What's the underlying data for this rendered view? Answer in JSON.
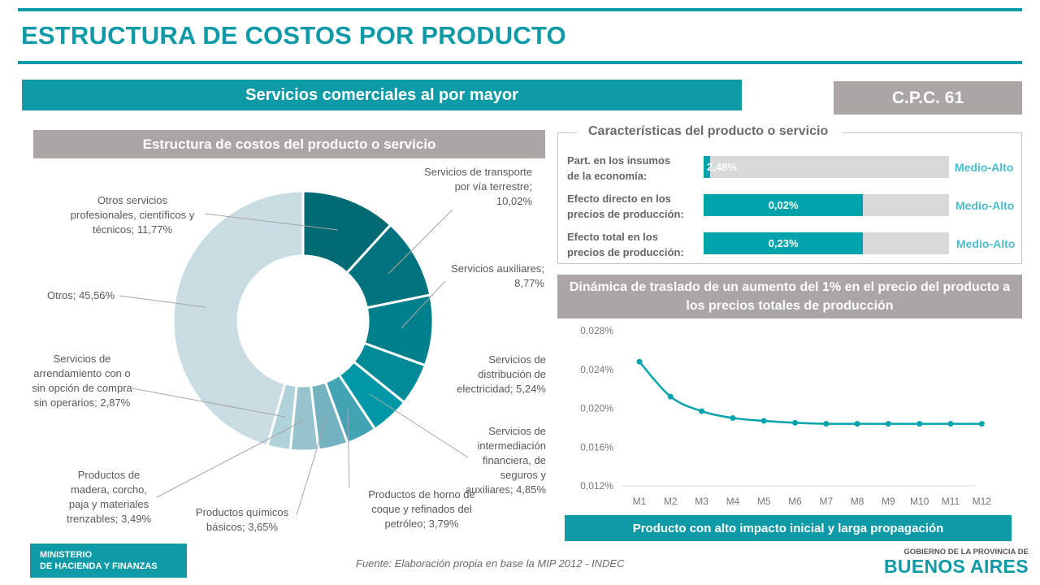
{
  "title": "ESTRUCTURA DE COSTOS POR PRODUCTO",
  "product": "Servicios comerciales al por mayor",
  "cpc": "C.P.C. 61",
  "donut_header": "Estructura  de costos del producto  o servicio",
  "characteristics": {
    "title": "Características del producto o servicio",
    "rows": [
      {
        "label_1": "Part. en los insumos",
        "label_2": "de la economía:",
        "value": "2,48%",
        "fill_percent": 2.5,
        "level": "Medio-Alto"
      },
      {
        "label_1": "Efecto directo en los",
        "label_2": "precios de producción:",
        "value": "0,02%",
        "fill_percent": 65,
        "level": "Medio-Alto"
      },
      {
        "label_1": "Efecto total en los",
        "label_2": "precios de producción:",
        "value": "0,23%",
        "fill_percent": 65,
        "level": "Medio-Alto"
      }
    ],
    "colors": {
      "fill": "#00a3ab",
      "track": "#d9d9d9",
      "level": "#4bbccb"
    }
  },
  "dynamics_header": "Dinámica de traslado de un aumento del 1% en el precio del producto a los precios totales de producción",
  "dynamics_footer": "Producto con alto impacto inicial y larga propagación",
  "footer": {
    "ministry_1": "MINISTERIO",
    "ministry_2": "DE HACIENDA Y FINANZAS",
    "source": "Fuente: Elaboración propia en base la MIP 2012 - INDEC",
    "gov_1": "GOBIERNO DE LA PROVINCIA DE",
    "gov_2": "BUENOS AIRES"
  },
  "chart_data": [
    {
      "type": "pie",
      "donut": true,
      "slices": [
        {
          "label": "Otros servicios profesionales, científicos y técnicos; 11,77%",
          "value": 11.77,
          "color": "#016a73"
        },
        {
          "label": "Servicios de transporte por vía terrestre; 10,02%",
          "value": 10.02,
          "color": "#01737f"
        },
        {
          "label": "Servicios auxiliares; 8,77%",
          "value": 8.77,
          "color": "#01808c"
        },
        {
          "label": "Servicios de distribución de electricidad; 5,24%",
          "value": 5.24,
          "color": "#018b99"
        },
        {
          "label": "Servicios de intermediación financiera, de seguros y auxiliares; 4,85%",
          "value": 4.85,
          "color": "#0097a7"
        },
        {
          "label": "Productos de horno de coque y refinados del petróleo; 3,79%",
          "value": 3.79,
          "color": "#42a3b3"
        },
        {
          "label": "Productos químicos básicos; 3,65%",
          "value": 3.65,
          "color": "#75b2c0"
        },
        {
          "label": "Productos de madera, corcho, paja y materiales trenzables; 3,49%",
          "value": 3.49,
          "color": "#96c3ce"
        },
        {
          "label": "Servicios de arrendamiento con o sin opción de compra sin operarios; 2,87%",
          "value": 2.87,
          "color": "#b0d3db"
        },
        {
          "label": "Otros; 45,56%",
          "value": 45.56,
          "color": "#c8dce1"
        }
      ]
    },
    {
      "type": "line",
      "categories": [
        "M1",
        "M2",
        "M3",
        "M4",
        "M5",
        "M6",
        "M7",
        "M8",
        "M9",
        "M10",
        "M11",
        "M12"
      ],
      "values": [
        0.0248,
        0.0212,
        0.0197,
        0.019,
        0.0187,
        0.0185,
        0.0184,
        0.0184,
        0.0184,
        0.0184,
        0.0184,
        0.0184
      ],
      "ylim": [
        0.012,
        0.028
      ],
      "yticks": [
        "0,012%",
        "0,016%",
        "0,020%",
        "0,024%",
        "0,028%"
      ],
      "grid": false,
      "color": "#00a3ab"
    }
  ]
}
